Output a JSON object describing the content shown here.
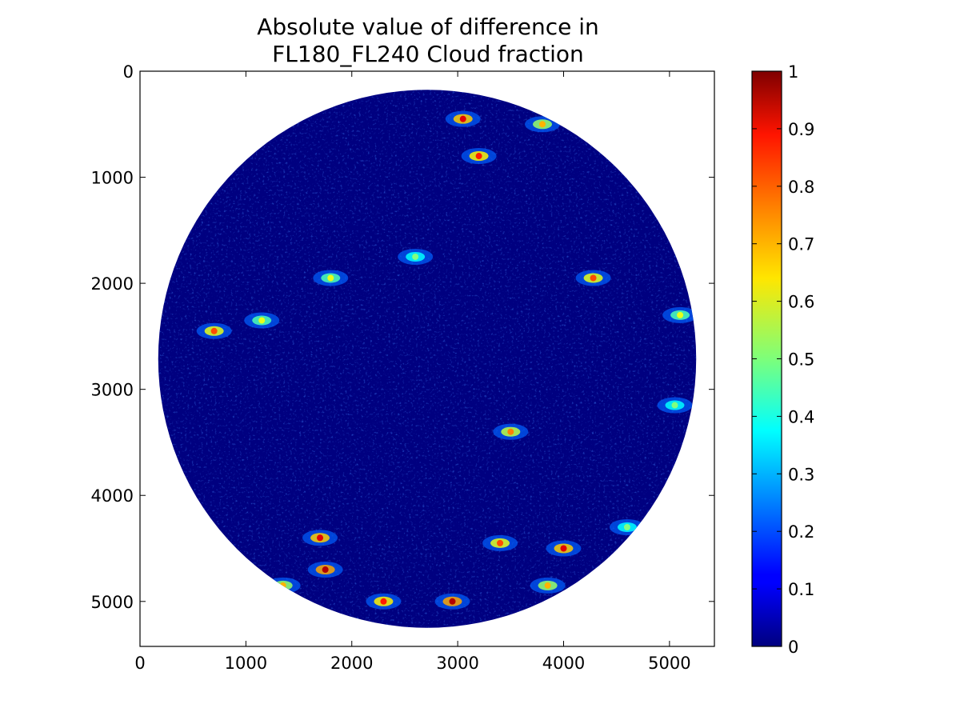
{
  "chart_data": {
    "type": "heatmap",
    "title_lines": [
      "Absolute value of difference in",
      "FL180_FL240 Cloud fraction"
    ],
    "xlabel": "",
    "ylabel": "",
    "xlim": [
      0,
      5424
    ],
    "ylim": [
      5424,
      0
    ],
    "x_ticks": [
      0,
      1000,
      2000,
      3000,
      4000,
      5000
    ],
    "y_ticks": [
      0,
      1000,
      2000,
      3000,
      4000,
      5000
    ],
    "disk": {
      "center": [
        2712,
        2712
      ],
      "radius": 2540
    },
    "colormap": "jet",
    "colorbar": {
      "range": [
        0,
        1
      ],
      "ticks": [
        "0",
        "0.1",
        "0.2",
        "0.3",
        "0.4",
        "0.5",
        "0.6",
        "0.7",
        "0.8",
        "0.9",
        "1"
      ]
    },
    "background_value": 0,
    "grid": false,
    "hotspots": [
      {
        "x": 3050,
        "y": 450,
        "value": 0.9
      },
      {
        "x": 3200,
        "y": 800,
        "value": 0.85
      },
      {
        "x": 3800,
        "y": 500,
        "value": 0.7
      },
      {
        "x": 700,
        "y": 2450,
        "value": 0.8
      },
      {
        "x": 1150,
        "y": 2350,
        "value": 0.6
      },
      {
        "x": 3500,
        "y": 3400,
        "value": 0.75
      },
      {
        "x": 4280,
        "y": 1950,
        "value": 0.8
      },
      {
        "x": 5050,
        "y": 3150,
        "value": 0.5
      },
      {
        "x": 1700,
        "y": 4400,
        "value": 0.9
      },
      {
        "x": 1750,
        "y": 4700,
        "value": 0.95
      },
      {
        "x": 1350,
        "y": 4850,
        "value": 0.7
      },
      {
        "x": 2300,
        "y": 5000,
        "value": 0.85
      },
      {
        "x": 2950,
        "y": 5000,
        "value": 0.95
      },
      {
        "x": 3400,
        "y": 4450,
        "value": 0.8
      },
      {
        "x": 4000,
        "y": 4500,
        "value": 0.9
      },
      {
        "x": 3850,
        "y": 4850,
        "value": 0.7
      },
      {
        "x": 4600,
        "y": 4300,
        "value": 0.5
      },
      {
        "x": 1800,
        "y": 1950,
        "value": 0.6
      },
      {
        "x": 2600,
        "y": 1750,
        "value": 0.5
      },
      {
        "x": 5100,
        "y": 2300,
        "value": 0.6
      }
    ]
  }
}
